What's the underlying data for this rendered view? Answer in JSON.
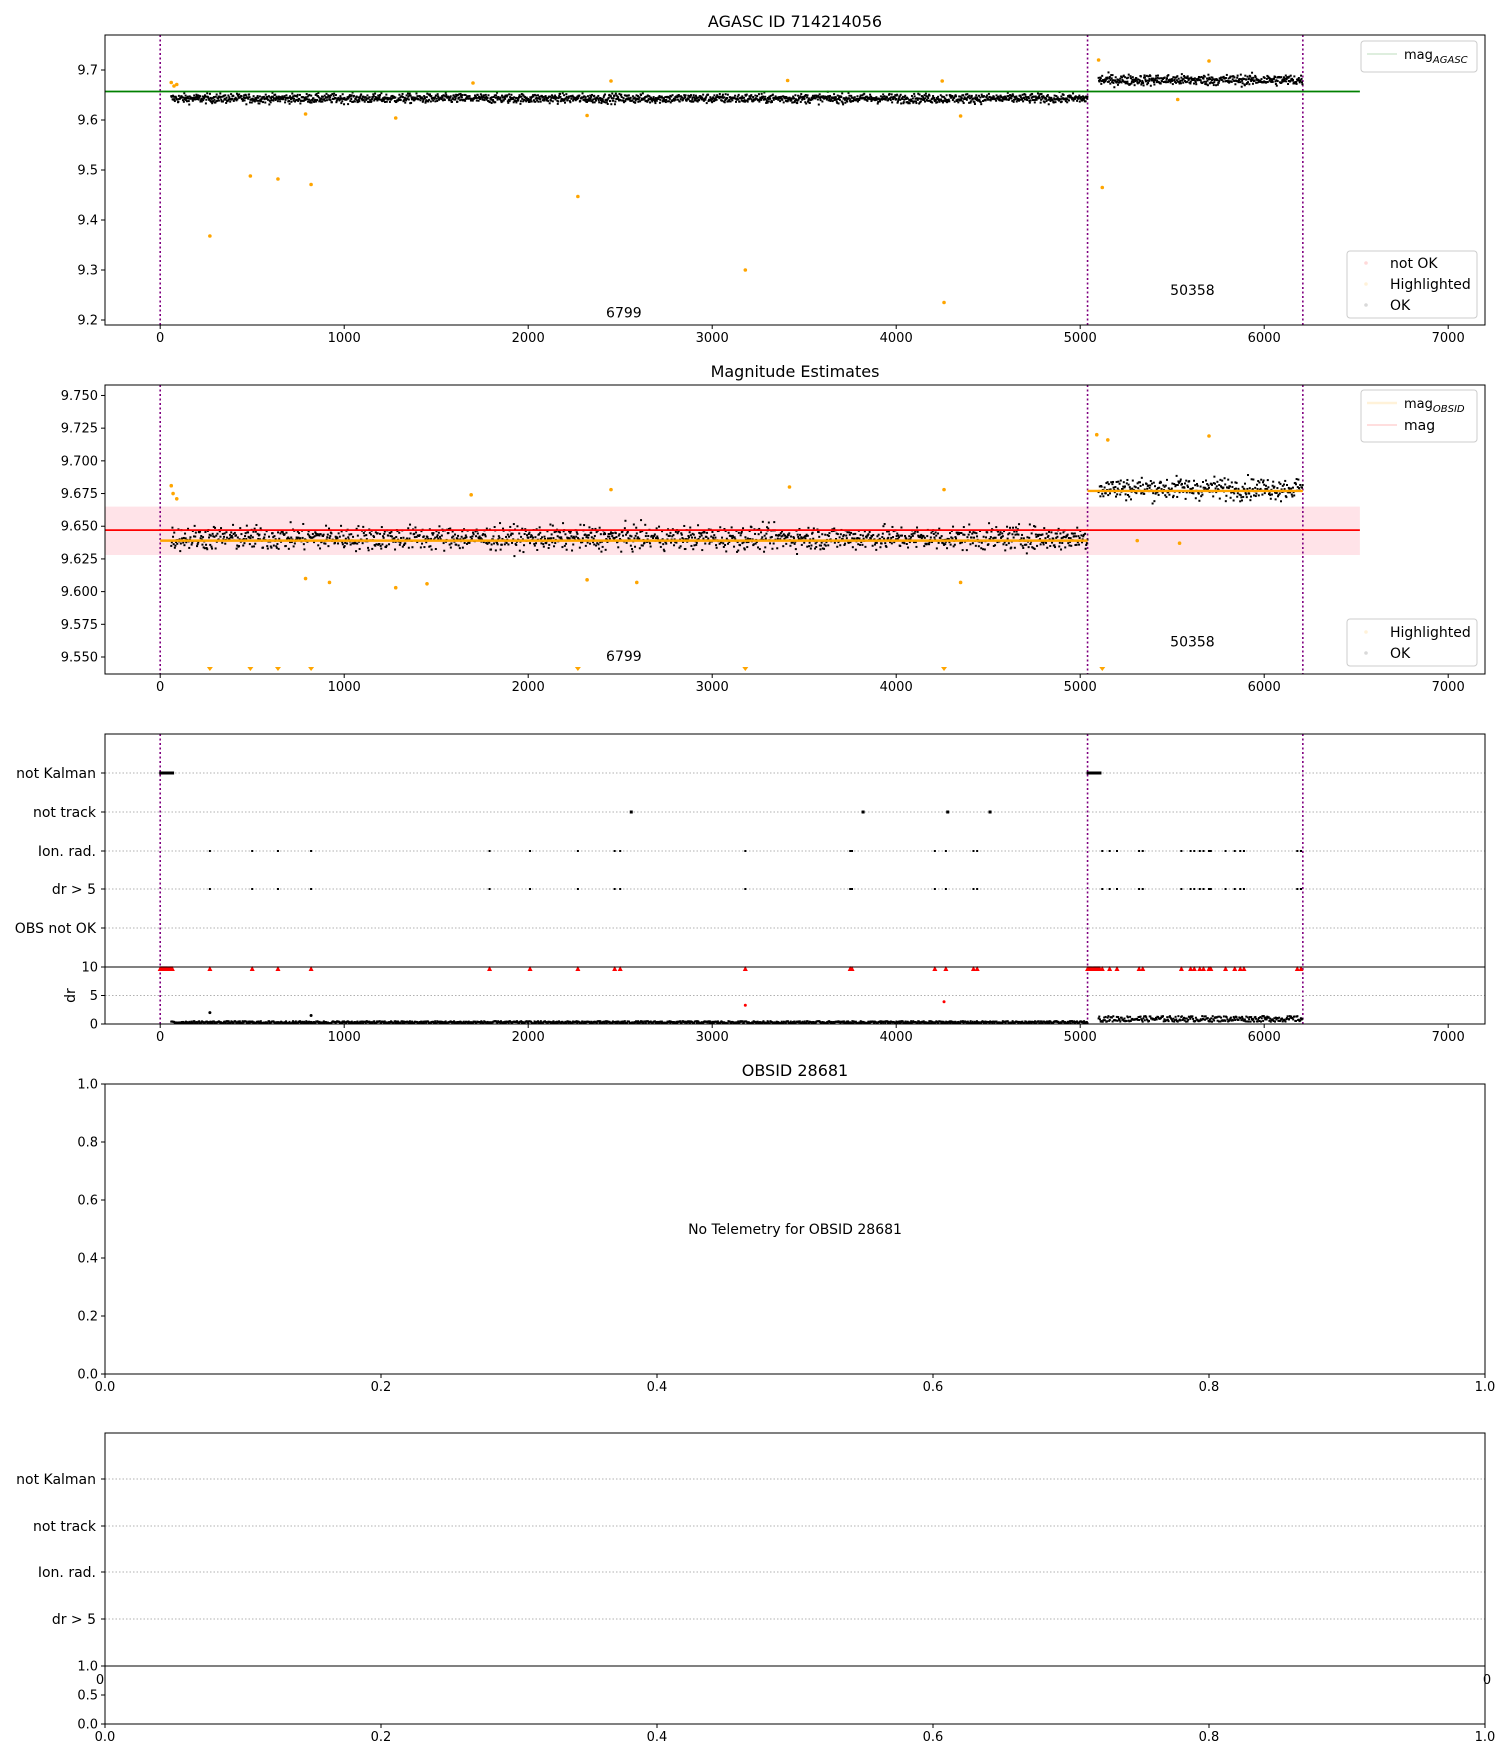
{
  "chart_data": [
    {
      "type": "scatter",
      "title": "AGASC ID 714214056",
      "xlim": [
        -300,
        7200
      ],
      "ylim": [
        9.19,
        9.77
      ],
      "xticks": [
        "0",
        "1000",
        "2000",
        "3000",
        "4000",
        "5000",
        "6000",
        "7000"
      ],
      "yticks": [
        "9.2",
        "9.3",
        "9.4",
        "9.5",
        "9.6",
        "9.7"
      ],
      "legend_upper": {
        "placement": "top-right",
        "entries": [
          "mag_AGASC"
        ],
        "main": "mag",
        "sub": "AGASC"
      },
      "legend_lower": {
        "placement": "bottom-right",
        "entries": [
          "not OK",
          "Highlighted",
          "OK"
        ]
      },
      "mag_agasc": 9.657,
      "mag_agasc_range": [
        0,
        6520
      ],
      "obs_boundaries": [
        0,
        5040,
        6210
      ],
      "annotations": [
        {
          "text": "6799",
          "x": 2520,
          "y": 9.205
        },
        {
          "text": "50358",
          "x": 5610,
          "y": 9.25
        }
      ],
      "segments": [
        {
          "obsid": "6799",
          "x": [
            60,
            5040
          ],
          "center": 9.643,
          "spread": 0.012
        },
        {
          "obsid": "50358",
          "x": [
            5100,
            6210
          ],
          "center": 9.68,
          "spread": 0.014
        }
      ],
      "highlighted": [
        [
          270,
          9.368
        ],
        [
          490,
          9.488
        ],
        [
          640,
          9.482
        ],
        [
          820,
          9.471
        ],
        [
          2270,
          9.447
        ],
        [
          3180,
          9.3
        ],
        [
          4260,
          9.235
        ],
        [
          5120,
          9.465
        ],
        [
          60,
          9.675
        ],
        [
          75,
          9.668
        ],
        [
          90,
          9.671
        ],
        [
          1700,
          9.674
        ],
        [
          2450,
          9.678
        ],
        [
          3410,
          9.679
        ],
        [
          4250,
          9.678
        ],
        [
          5100,
          9.72
        ],
        [
          5700,
          9.718
        ],
        [
          790,
          9.612
        ],
        [
          1280,
          9.604
        ],
        [
          2320,
          9.609
        ],
        [
          4350,
          9.608
        ],
        [
          5530,
          9.641
        ]
      ],
      "colors": {
        "ok": "#000000",
        "highlighted": "#ffa500",
        "not_ok": "#ff0000",
        "mag_agasc": "#008000",
        "boundary": "#800080"
      }
    },
    {
      "type": "scatter",
      "title": "Magnitude Estimates",
      "xlim": [
        -300,
        7200
      ],
      "ylim": [
        9.537,
        9.758
      ],
      "xticks": [
        "0",
        "1000",
        "2000",
        "3000",
        "4000",
        "5000",
        "6000",
        "7000"
      ],
      "yticks": [
        "9.750",
        "9.725",
        "9.700",
        "9.675",
        "9.650",
        "9.625",
        "9.600",
        "9.575",
        "9.550"
      ],
      "legend_upper": {
        "placement": "top-right",
        "entries": [
          "mag_OBSID",
          "mag"
        ],
        "main": "mag",
        "sub": "OBSID"
      },
      "legend_lower": {
        "placement": "bottom-right",
        "entries": [
          "Highlighted",
          "OK"
        ]
      },
      "mag": 9.647,
      "mag_band": [
        9.628,
        9.665
      ],
      "mag_range": [
        0,
        6520
      ],
      "mag_obsid": [
        {
          "x": [
            0,
            5040
          ],
          "value": 9.639
        },
        {
          "x": [
            5040,
            6210
          ],
          "value": 9.677
        }
      ],
      "obs_boundaries": [
        0,
        5040,
        6210
      ],
      "annotations": [
        {
          "text": "6799",
          "x": 2520,
          "y": 9.547
        },
        {
          "text": "50358",
          "x": 5610,
          "y": 9.558
        }
      ],
      "segments": [
        {
          "obsid": "6799",
          "x": [
            60,
            5040
          ],
          "center": 9.641,
          "spread": 0.012
        },
        {
          "obsid": "50358",
          "x": [
            5100,
            6210
          ],
          "center": 9.679,
          "spread": 0.011
        }
      ],
      "clipped_markers_x": [
        270,
        490,
        640,
        820,
        2270,
        3180,
        4260,
        5120
      ],
      "highlighted": [
        [
          60,
          9.681
        ],
        [
          70,
          9.675
        ],
        [
          90,
          9.671
        ],
        [
          1690,
          9.674
        ],
        [
          2450,
          9.678
        ],
        [
          3420,
          9.68
        ],
        [
          4260,
          9.678
        ],
        [
          5090,
          9.72
        ],
        [
          5150,
          9.716
        ],
        [
          5700,
          9.719
        ],
        [
          790,
          9.61
        ],
        [
          920,
          9.607
        ],
        [
          1280,
          9.603
        ],
        [
          1450,
          9.606
        ],
        [
          2320,
          9.609
        ],
        [
          2590,
          9.607
        ],
        [
          4350,
          9.607
        ],
        [
          5310,
          9.639
        ],
        [
          5540,
          9.637
        ]
      ],
      "colors": {
        "ok": "#000000",
        "highlighted": "#ffa500",
        "mag": "#ff0000",
        "mag_obsid": "#ffa500",
        "band": "#ffc0cb",
        "boundary": "#800080"
      }
    },
    {
      "type": "scatter",
      "xlim": [
        -300,
        7200
      ],
      "xticks": [
        "0",
        "1000",
        "2000",
        "3000",
        "4000",
        "5000",
        "6000",
        "7000"
      ],
      "flag_labels": [
        "not Kalman",
        "not track",
        "Ion. rad.",
        "dr > 5",
        "OBS not OK"
      ],
      "obs_boundaries": [
        0,
        5040,
        6210
      ],
      "not_kalman": [
        [
          0,
          70
        ],
        [
          5040,
          5110
        ]
      ],
      "not_track": [
        2560,
        3820,
        4280,
        4510
      ],
      "ion_rad": [
        270,
        500,
        640,
        820,
        1790,
        2010,
        2270,
        2470,
        2500,
        3180,
        3750,
        3760,
        4210,
        4270,
        4420,
        4440,
        5120,
        5160,
        5200,
        5320,
        5340,
        5550,
        5600,
        5620,
        5650,
        5670,
        5700,
        5710,
        5790,
        5840,
        5870,
        5890,
        6180,
        6200
      ],
      "dr_ok": {
        "x": [
          60,
          5040
        ],
        "values": [
          0.1,
          0.5
        ]
      },
      "dr_ok_2": {
        "x": [
          5100,
          6210
        ],
        "values": [
          0.4,
          1.4
        ]
      },
      "dr_outliers": [
        [
          270,
          2.0
        ],
        [
          820,
          1.5
        ],
        [
          3180,
          3.3
        ],
        [
          4260,
          3.9
        ]
      ],
      "dr_panel": {
        "ylabel": "dr",
        "ylim": [
          0,
          10
        ],
        "yticks": [
          "0",
          "5",
          "10"
        ]
      },
      "colors": {
        "flag": "#000000",
        "dr_clip": "#ff0000",
        "grid": "#b0b0b0",
        "boundary": "#800080"
      }
    },
    {
      "type": "scatter",
      "title": "OBSID 28681",
      "message": "No Telemetry for OBSID 28681",
      "xlim": [
        0,
        1
      ],
      "ylim": [
        0,
        1
      ],
      "xticks": [
        "0.0",
        "0.2",
        "0.4",
        "0.6",
        "0.8",
        "1.0"
      ],
      "yticks": [
        "0.0",
        "0.2",
        "0.4",
        "0.6",
        "0.8",
        "1.0"
      ]
    },
    {
      "type": "scatter",
      "flag_labels": [
        "not Kalman",
        "not track",
        "Ion. rad.",
        "dr > 5"
      ],
      "partial_ticks": [
        "0",
        "0"
      ],
      "dr_panel": {
        "ylim": [
          0,
          1
        ],
        "yticks": [
          "1.0",
          "0.5",
          "0.0"
        ]
      },
      "xticks": [
        "0.0",
        "0.2",
        "0.4",
        "0.6",
        "0.8",
        "1.0"
      ]
    }
  ]
}
